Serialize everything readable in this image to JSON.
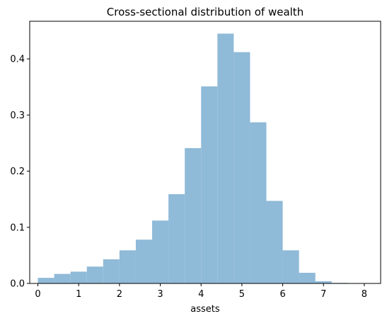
{
  "chart_data": {
    "type": "bar",
    "title": "Cross-sectional distribution of wealth",
    "xlabel": "assets",
    "ylabel": "",
    "xlim": [
      -0.2,
      8.4
    ],
    "ylim": [
      0,
      0.467
    ],
    "grid": false,
    "bar_color": "#8fbad8",
    "x_ticks": [
      0,
      1,
      2,
      3,
      4,
      5,
      6,
      7,
      8
    ],
    "y_ticks": [
      0.0,
      0.1,
      0.2,
      0.3,
      0.4
    ],
    "bin_edges": [
      0.0,
      0.4,
      0.8,
      1.2,
      1.6,
      2.0,
      2.4,
      2.8,
      3.2,
      3.6,
      4.0,
      4.4,
      4.8,
      5.2,
      5.6,
      6.0,
      6.4,
      6.8,
      7.2,
      7.6,
      8.0
    ],
    "values": [
      0.01,
      0.017,
      0.021,
      0.03,
      0.043,
      0.059,
      0.078,
      0.112,
      0.159,
      0.241,
      0.351,
      0.445,
      0.412,
      0.287,
      0.147,
      0.059,
      0.019,
      0.004,
      0.001,
      0.0
    ]
  }
}
